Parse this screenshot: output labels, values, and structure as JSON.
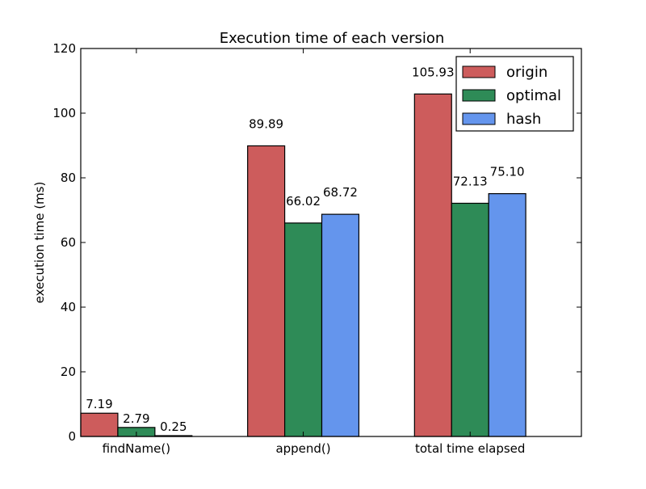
{
  "chart_data": {
    "type": "bar",
    "title": "Execution time of each version",
    "xlabel": "",
    "ylabel": "execution time (ms)",
    "categories": [
      "findName()",
      "append()",
      "total time elapsed"
    ],
    "series": [
      {
        "name": "origin",
        "color": "#cd5c5c",
        "values": [
          7.19,
          89.89,
          105.93
        ],
        "labels": [
          "7.19",
          "89.89",
          "105.93"
        ]
      },
      {
        "name": "optimal",
        "color": "#2e8b57",
        "values": [
          2.79,
          66.02,
          72.13
        ],
        "labels": [
          "2.79",
          "66.02",
          "72.13"
        ]
      },
      {
        "name": "hash",
        "color": "#6495ed",
        "values": [
          0.25,
          68.72,
          75.1
        ],
        "labels": [
          "0.25",
          "68.72",
          "75.10"
        ]
      }
    ],
    "ylim": [
      0,
      120
    ],
    "yticks": [
      "0",
      "20",
      "40",
      "60",
      "80",
      "100",
      "120"
    ],
    "legend_position": "top-right",
    "grid": false
  }
}
